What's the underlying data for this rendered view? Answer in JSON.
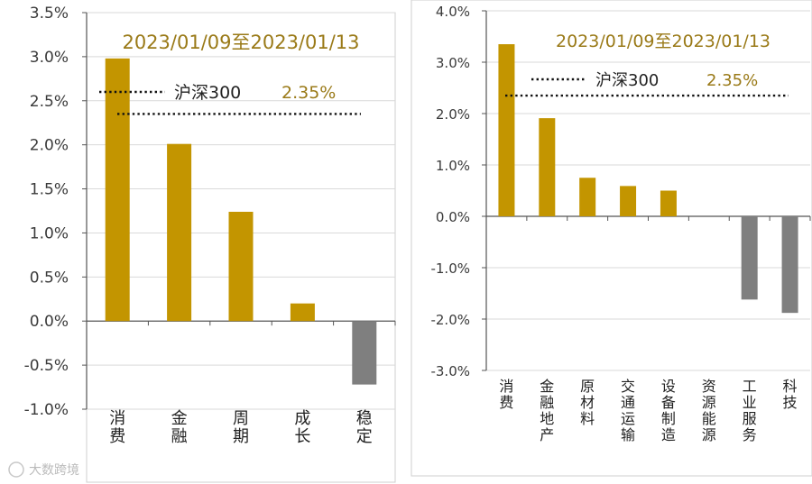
{
  "colors": {
    "positive": "#c39500",
    "negative": "#7f7f7f",
    "accent_text": "#9a7a18"
  },
  "watermark": "大数跨境",
  "chart_data": [
    {
      "type": "bar",
      "title": "2023/01/09至2023/01/13",
      "categories": [
        "消费",
        "金融",
        "周期",
        "成长",
        "稳定"
      ],
      "values": [
        2.98,
        2.01,
        1.24,
        0.2,
        -0.72
      ],
      "ylim": [
        -1.0,
        3.5
      ],
      "yticks": [
        "3.5%",
        "3.0%",
        "2.5%",
        "2.0%",
        "1.5%",
        "1.0%",
        "0.5%",
        "0.0%",
        "-0.5%",
        "-1.0%"
      ],
      "ytick_values": [
        3.5,
        3.0,
        2.5,
        2.0,
        1.5,
        1.0,
        0.5,
        0.0,
        -0.5,
        -1.0
      ],
      "grid": true,
      "reference": {
        "name": "沪深300",
        "label": "2.35%",
        "value": 2.35
      }
    },
    {
      "type": "bar",
      "title": "2023/01/09至2023/01/13",
      "categories": [
        "消费",
        "金融地产",
        "原材料",
        "交通运输",
        "设备制造",
        "资源能源",
        "工业服务",
        "科技"
      ],
      "values": [
        3.35,
        1.91,
        0.75,
        0.59,
        0.5,
        0.0,
        -1.62,
        -1.88
      ],
      "ylim": [
        -3.0,
        4.0
      ],
      "yticks": [
        "4.0%",
        "3.0%",
        "2.0%",
        "1.0%",
        "0.0%",
        "-1.0%",
        "-2.0%",
        "-3.0%"
      ],
      "ytick_values": [
        4.0,
        3.0,
        2.0,
        1.0,
        0.0,
        -1.0,
        -2.0,
        -3.0
      ],
      "grid": true,
      "reference": {
        "name": "沪深300",
        "label": "2.35%",
        "value": 2.35
      }
    }
  ]
}
